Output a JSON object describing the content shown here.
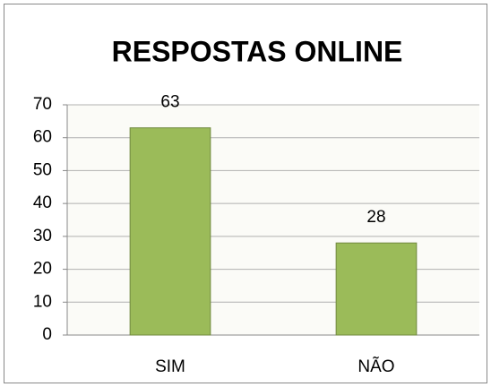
{
  "chart_data": {
    "type": "bar",
    "title": "RESPOSTAS ONLINE",
    "categories": [
      "SIM",
      "NÃO"
    ],
    "values": [
      63,
      28
    ],
    "color": "#9bbb59",
    "ylim": [
      0,
      70
    ],
    "yticks": [
      0,
      10,
      20,
      30,
      40,
      50,
      60,
      70
    ],
    "grid": true
  }
}
